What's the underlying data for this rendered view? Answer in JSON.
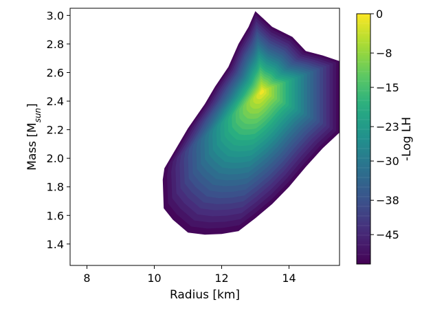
{
  "chart_data": {
    "type": "contourf",
    "xlabel": "Radius [km]",
    "ylabel": {
      "main": "Mass [M",
      "sub": "sun",
      "close": "]"
    },
    "xlim": [
      7.5,
      15.5
    ],
    "ylim": [
      1.25,
      3.05
    ],
    "xticks": [
      8,
      10,
      12,
      14
    ],
    "yticks": [
      "1.4",
      "1.6",
      "1.8",
      "2.0",
      "2.2",
      "2.4",
      "2.6",
      "2.8",
      "3.0"
    ],
    "colorbar": {
      "label": "-Log LH",
      "colormap": "viridis",
      "range": [
        -51,
        0
      ],
      "ticks": [
        0,
        -8,
        -15,
        -23,
        -30,
        -38,
        -45
      ],
      "tick_labels": [
        "0",
        "−8",
        "−15",
        "−23",
        "−30",
        "−38",
        "−45"
      ],
      "levels": 26
    },
    "peak": {
      "radius": 13.2,
      "mass": 2.47,
      "value": 0
    },
    "region_boundary": [
      [
        10.25,
        1.85
      ],
      [
        10.28,
        1.65
      ],
      [
        10.55,
        1.57
      ],
      [
        11.0,
        1.48
      ],
      [
        11.5,
        1.465
      ],
      [
        12.0,
        1.47
      ],
      [
        12.5,
        1.49
      ],
      [
        13.0,
        1.58
      ],
      [
        13.5,
        1.68
      ],
      [
        14.0,
        1.8
      ],
      [
        14.5,
        1.94
      ],
      [
        15.0,
        2.07
      ],
      [
        15.5,
        2.18
      ],
      [
        15.5,
        2.68
      ],
      [
        15.0,
        2.72
      ],
      [
        14.5,
        2.75
      ],
      [
        14.1,
        2.85
      ],
      [
        13.5,
        2.92
      ],
      [
        13.0,
        3.03
      ],
      [
        12.8,
        2.92
      ],
      [
        12.5,
        2.8
      ],
      [
        12.2,
        2.64
      ],
      [
        11.8,
        2.5
      ],
      [
        11.5,
        2.38
      ],
      [
        11.0,
        2.21
      ],
      [
        10.6,
        2.05
      ],
      [
        10.3,
        1.93
      ]
    ]
  }
}
